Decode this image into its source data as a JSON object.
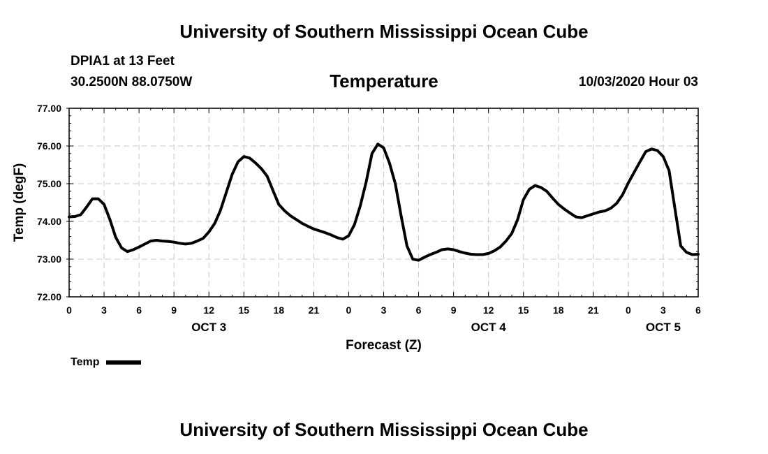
{
  "header": {
    "title": "University of Southern Mississippi Ocean Cube",
    "station": "DPIA1 at 13 Feet",
    "coordinates": "30.2500N 88.0750W",
    "datetime": "10/03/2020 Hour 03"
  },
  "footer": {
    "title": "University of Southern Mississippi Ocean Cube"
  },
  "chart_data": {
    "type": "line",
    "title": "Temperature",
    "xlabel": "Forecast (Z)",
    "ylabel": "Temp (degF)",
    "ylim": [
      72.0,
      77.0
    ],
    "xlim": [
      0,
      54
    ],
    "y_ticks": [
      "72.00",
      "73.00",
      "74.00",
      "75.00",
      "76.00",
      "77.00"
    ],
    "y_tick_values": [
      72,
      73,
      74,
      75,
      76,
      77
    ],
    "x_ticks": [
      "0",
      "3",
      "6",
      "9",
      "12",
      "15",
      "18",
      "21",
      "0",
      "3",
      "6",
      "9",
      "12",
      "15",
      "18",
      "21",
      "0",
      "3",
      "6"
    ],
    "date_labels": [
      {
        "label": "OCT 3",
        "hour": 12
      },
      {
        "label": "OCT 4",
        "hour": 36
      },
      {
        "label": "OCT 5",
        "hour": 51
      }
    ],
    "grid": true,
    "legend": "bottom-left",
    "series": [
      {
        "name": "Temp",
        "color": "#000000",
        "x": [
          0,
          0.5,
          1,
          1.5,
          2,
          2.5,
          3,
          3.5,
          4,
          4.5,
          5,
          5.5,
          6,
          6.5,
          7,
          7.5,
          8,
          8.5,
          9,
          9.5,
          10,
          10.5,
          11,
          11.5,
          12,
          12.5,
          13,
          13.5,
          14,
          14.5,
          15,
          15.5,
          16,
          16.5,
          17,
          17.5,
          18,
          18.5,
          19,
          19.5,
          20,
          20.5,
          21,
          21.5,
          22,
          22.5,
          23,
          23.5,
          24,
          24.5,
          25,
          25.5,
          26,
          26.5,
          27,
          27.5,
          28,
          28.5,
          29,
          29.5,
          30,
          30.5,
          31,
          31.5,
          32,
          32.5,
          33,
          33.5,
          34,
          34.5,
          35,
          35.5,
          36,
          36.5,
          37,
          37.5,
          38,
          38.5,
          39,
          39.5,
          40,
          40.5,
          41,
          41.5,
          42,
          42.5,
          43,
          43.5,
          44,
          44.5,
          45,
          45.5,
          46,
          46.5,
          47,
          47.5,
          48,
          48.5,
          49,
          49.5,
          50,
          50.5,
          51,
          51.5,
          52,
          52.5,
          53,
          53.5,
          54
        ],
        "values": [
          74.12,
          74.13,
          74.18,
          74.38,
          74.6,
          74.6,
          74.45,
          74.05,
          73.58,
          73.3,
          73.2,
          73.25,
          73.32,
          73.4,
          73.48,
          73.5,
          73.48,
          73.47,
          73.45,
          73.42,
          73.4,
          73.42,
          73.48,
          73.55,
          73.72,
          73.95,
          74.3,
          74.78,
          75.25,
          75.58,
          75.72,
          75.68,
          75.55,
          75.4,
          75.2,
          74.82,
          74.45,
          74.28,
          74.15,
          74.05,
          73.95,
          73.87,
          73.8,
          73.75,
          73.7,
          73.64,
          73.57,
          73.53,
          73.62,
          73.92,
          74.42,
          75.05,
          75.8,
          76.05,
          75.95,
          75.55,
          75.0,
          74.15,
          73.35,
          73.0,
          72.97,
          73.05,
          73.12,
          73.18,
          73.25,
          73.27,
          73.25,
          73.2,
          73.16,
          73.13,
          73.12,
          73.12,
          73.15,
          73.22,
          73.32,
          73.48,
          73.68,
          74.05,
          74.58,
          74.85,
          74.95,
          74.9,
          74.8,
          74.62,
          74.45,
          74.33,
          74.22,
          74.12,
          74.1,
          74.15,
          74.2,
          74.25,
          74.28,
          74.35,
          74.48,
          74.7,
          75.02,
          75.3,
          75.58,
          75.85,
          75.92,
          75.88,
          75.72,
          75.35,
          74.35,
          73.35,
          73.18,
          73.12,
          73.13
        ]
      }
    ]
  }
}
